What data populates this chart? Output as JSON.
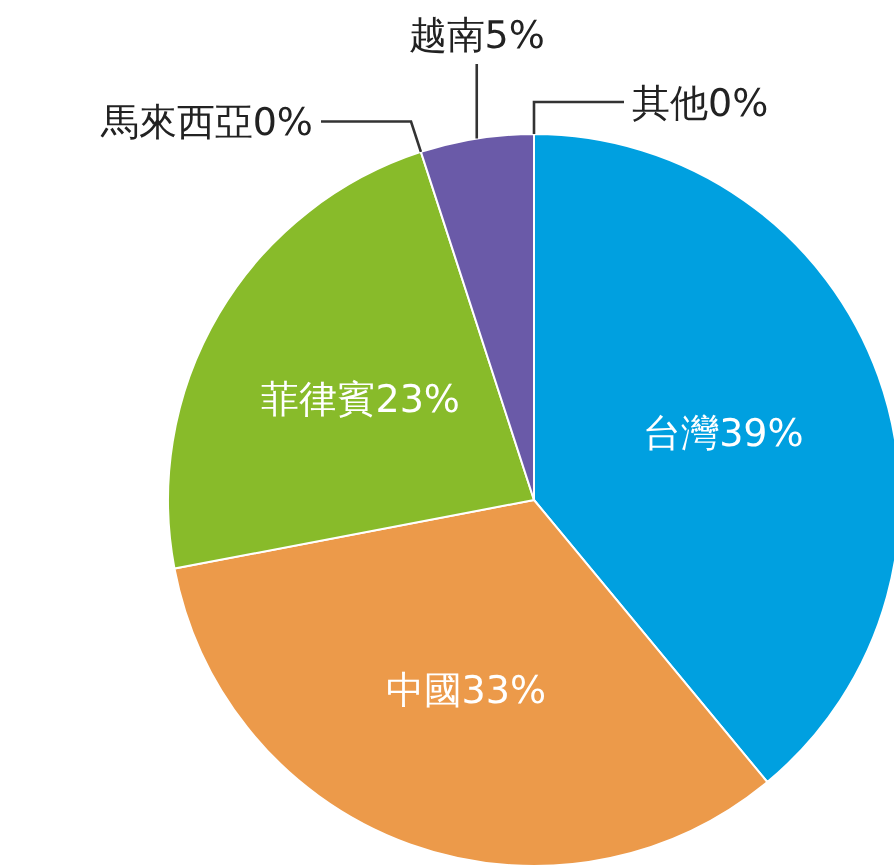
{
  "chart_data": {
    "type": "pie",
    "categories": [
      "台灣",
      "中國",
      "菲律賓",
      "馬來西亞",
      "越南",
      "其他"
    ],
    "values": [
      39,
      33,
      23,
      0,
      5,
      0
    ],
    "value_labels": [
      "39%",
      "33%",
      "23%",
      "0%",
      "5%",
      "0%"
    ],
    "colors": [
      "#00a0e0",
      "#ec9a4a",
      "#88bb2a",
      null,
      "#6a5aa8",
      null
    ]
  }
}
